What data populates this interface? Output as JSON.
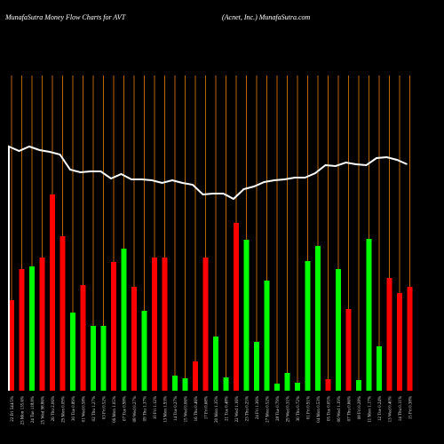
{
  "chart_data": {
    "type": "bar",
    "title": "MunafaSutra  Money Flow  Charts for AVT",
    "subtitle": "(Acnet,  Inc.) MunafaSutra.com",
    "categories": [
      "22 Fri 544.5%",
      "23 Mon 135.6%",
      "24 Tue 118.8%",
      "25 Wed 98.86%",
      "26 Thu 2.06%",
      "29 Mon 0.09%",
      "30 Tue 0.89%",
      "01 Wed 0.58%",
      "02 Thu 1.27%",
      "03 Fri 0.52%",
      "06 Mon 1.05%",
      "07 Tue 0.98%",
      "08 Wed 0.27%",
      "09 Thu 1.37%",
      "10 Fri 1.12%",
      "13 Mon 1.93%",
      "14 Tue 0.27%",
      "15 Wed 0.06%",
      "16 Thu 0.46%",
      "17 Fri 0.68%",
      "20 Mon 1.35%",
      "21 Tue 0.48%",
      "22 Wed 1.16%",
      "23 Thu 0.25%",
      "24 Fri 1.36%",
      "27 Mon 0.52%",
      "28 Tue 0.79%",
      "29 Wed 0.31%",
      "30 Thu 0.72%",
      "01 Fri 0.91%",
      "04 Mon 0.53%",
      "05 Tue 0.05%",
      "06 Wed 1.19%",
      "07 Thu 0.66%",
      "08 Fri 0.28%",
      "11 Mon 1.17%",
      "12 Tue 0.24%",
      "13 Wed 0.40%",
      "14 Thu 0.11%",
      "15 Fri 0.38%"
    ],
    "values": [
      102,
      137,
      140,
      150,
      221,
      174,
      88,
      119,
      73,
      73,
      145,
      160,
      117,
      90,
      150,
      150,
      17,
      14,
      33,
      150,
      61,
      15,
      189,
      170,
      55,
      124,
      8,
      20,
      9,
      146,
      163,
      13,
      137,
      92,
      12,
      171,
      50,
      127,
      110,
      117
    ],
    "colors": [
      "#ff0000",
      "#ff0000",
      "#00ff00",
      "#ff0000",
      "#ff0000",
      "#ff0000",
      "#00ff00",
      "#ff0000",
      "#00ff00",
      "#00ff00",
      "#ff0000",
      "#00ff00",
      "#ff0000",
      "#00ff00",
      "#ff0000",
      "#ff0000",
      "#00ff00",
      "#00ff00",
      "#ff0000",
      "#ff0000",
      "#00ff00",
      "#00ff00",
      "#ff0000",
      "#00ff00",
      "#00ff00",
      "#00ff00",
      "#00ff00",
      "#00ff00",
      "#00ff00",
      "#00ff00",
      "#00ff00",
      "#ff0000",
      "#00ff00",
      "#ff0000",
      "#00ff00",
      "#00ff00",
      "#00ff00",
      "#ff0000",
      "#ff0000",
      "#ff0000"
    ],
    "line_values": [
      275,
      270,
      275,
      271,
      269,
      266,
      249,
      246,
      247,
      247,
      239,
      244,
      238,
      238,
      237,
      234,
      237,
      234,
      232,
      221,
      222,
      222,
      216,
      227,
      230,
      235,
      237,
      238,
      240,
      240,
      245,
      254,
      253,
      257,
      255,
      254,
      262,
      263,
      260,
      255
    ],
    "line_color": "#ffffff",
    "guide_color": "#b8620a"
  }
}
